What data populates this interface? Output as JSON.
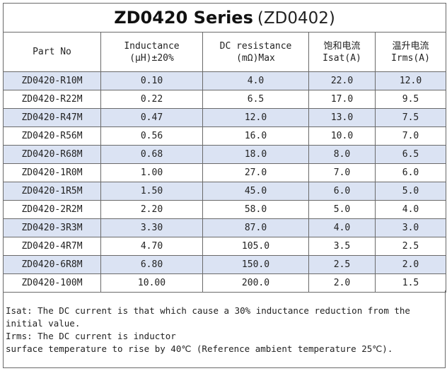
{
  "title": {
    "main": "ZD0420 Series",
    "sub": "(ZD0402)"
  },
  "headers": [
    {
      "line1": "Part No",
      "line2": ""
    },
    {
      "line1": "Inductance",
      "line2": "(μH)±20%"
    },
    {
      "line1": "DC resistance",
      "line2": "(mΩ)Max"
    },
    {
      "line1": "饱和电流",
      "line2": "Isat(A)"
    },
    {
      "line1": "温升电流",
      "line2": "Irms(A)"
    }
  ],
  "rows": [
    [
      "ZD0420-R10M",
      "0.10",
      "4.0",
      "22.0",
      "12.0"
    ],
    [
      "ZD0420-R22M",
      "0.22",
      "6.5",
      "17.0",
      "9.5"
    ],
    [
      "ZD0420-R47M",
      "0.47",
      "12.0",
      "13.0",
      "7.5"
    ],
    [
      "ZD0420-R56M",
      "0.56",
      "16.0",
      "10.0",
      "7.0"
    ],
    [
      "ZD0420-R68M",
      "0.68",
      "18.0",
      "8.0",
      "6.5"
    ],
    [
      "ZD0420-1R0M",
      "1.00",
      "27.0",
      "7.0",
      "6.0"
    ],
    [
      "ZD0420-1R5M",
      "1.50",
      "45.0",
      "6.0",
      "5.0"
    ],
    [
      "ZD0420-2R2M",
      "2.20",
      "58.0",
      "5.0",
      "4.0"
    ],
    [
      "ZD0420-3R3M",
      "3.30",
      "87.0",
      "4.0",
      "3.0"
    ],
    [
      "ZD0420-4R7M",
      "4.70",
      "105.0",
      "3.5",
      "2.5"
    ],
    [
      "ZD0420-6R8M",
      "6.80",
      "150.0",
      "2.5",
      "2.0"
    ],
    [
      "ZD0420-100M",
      "10.00",
      "200.0",
      "2.0",
      "1.5"
    ]
  ],
  "notes": [
    "Isat: The DC current is that which cause a 30% inductance reduction from the",
    "initial value.",
    "Irms: The DC current is inductor",
    "surface temperature to rise by 40℃ (Reference ambient temperature 25℃)."
  ],
  "colors": {
    "row_shade": "#dbe3f3",
    "border": "#6a6a6a"
  }
}
